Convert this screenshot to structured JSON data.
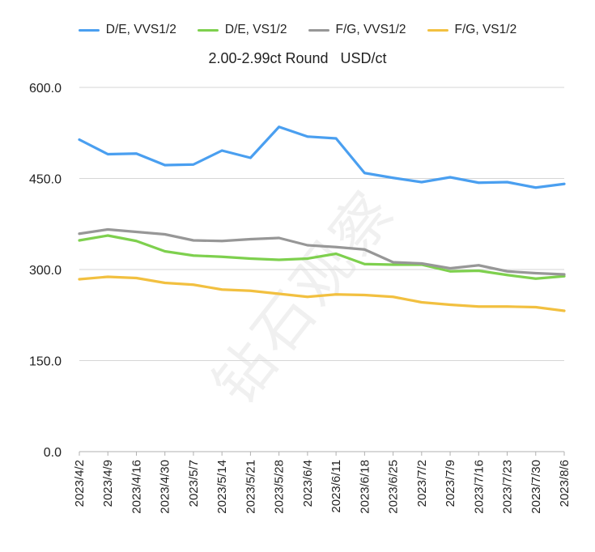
{
  "chart_data": {
    "type": "line",
    "title": "2.00-2.99ct Round   USD/ct",
    "xlabel": "",
    "ylabel": "",
    "ylim": [
      0,
      600
    ],
    "yticks": [
      "0.0",
      "150.0",
      "300.0",
      "450.0",
      "600.0"
    ],
    "grid": true,
    "legend_position": "top",
    "watermark": "钻石观察",
    "categories": [
      "2023/4/2",
      "2023/4/9",
      "2023/4/16",
      "2023/4/30",
      "2023/5/7",
      "2023/5/14",
      "2023/5/21",
      "2023/5/28",
      "2023/6/4",
      "2023/6/11",
      "2023/6/18",
      "2023/6/25",
      "2023/7/2",
      "2023/7/9",
      "2023/7/16",
      "2023/7/23",
      "2023/7/30",
      "2023/8/6"
    ],
    "series": [
      {
        "name": "D/E, VVS1/2",
        "color": "#4a9ff0",
        "values": [
          514,
          490,
          491,
          472,
          473,
          496,
          484,
          535,
          519,
          516,
          459,
          451,
          444,
          452,
          443,
          444,
          435,
          441
        ]
      },
      {
        "name": "D/E, VS1/2",
        "color": "#7ed04e",
        "values": [
          348,
          356,
          347,
          330,
          323,
          321,
          318,
          316,
          318,
          326,
          309,
          308,
          308,
          297,
          298,
          291,
          285,
          289
        ]
      },
      {
        "name": "F/G, VVS1/2",
        "color": "#979797",
        "values": [
          359,
          366,
          362,
          358,
          348,
          347,
          350,
          352,
          340,
          337,
          333,
          312,
          310,
          302,
          307,
          297,
          294,
          292
        ]
      },
      {
        "name": "F/G, VS1/2",
        "color": "#f2c040",
        "values": [
          284,
          288,
          286,
          278,
          275,
          267,
          265,
          260,
          255,
          259,
          258,
          255,
          246,
          242,
          239,
          239,
          238,
          232
        ]
      }
    ]
  }
}
